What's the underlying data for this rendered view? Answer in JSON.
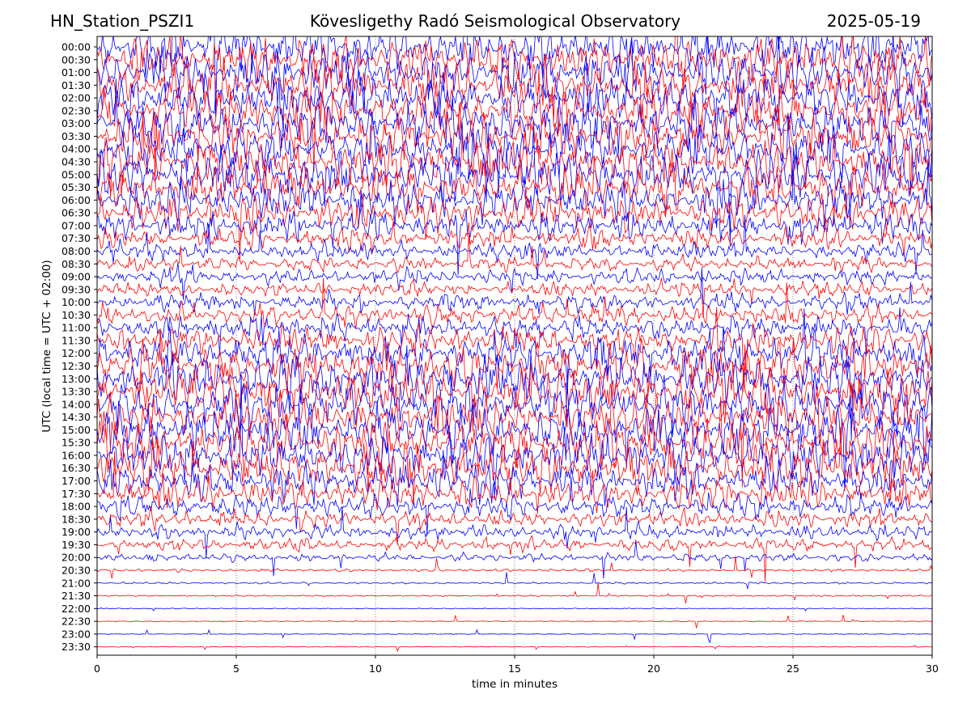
{
  "header": {
    "station": "HN_Station_PSZI1",
    "observatory": "Kövesligethy Radó Seismological Observatory",
    "date": "2025-05-19"
  },
  "chart_data": {
    "type": "line",
    "title": "Kövesligethy Radó Seismological Observatory",
    "xlabel": "time in minutes",
    "ylabel": "UTC (local time = UTC + 02:00)",
    "xlim": [
      0,
      30
    ],
    "x_ticks": [
      "0",
      "5",
      "10",
      "15",
      "20",
      "25",
      "30"
    ],
    "x_tick_values": [
      0,
      5,
      10,
      15,
      20,
      25,
      30
    ],
    "grid": "vertical dotted at x ticks",
    "row_labels": [
      "00:00",
      "00:30",
      "01:00",
      "01:30",
      "02:00",
      "02:30",
      "03:00",
      "03:30",
      "04:00",
      "04:30",
      "05:00",
      "05:30",
      "06:00",
      "06:30",
      "07:00",
      "07:30",
      "08:00",
      "08:30",
      "09:00",
      "09:30",
      "10:00",
      "10:30",
      "11:00",
      "11:30",
      "12:00",
      "12:30",
      "13:00",
      "13:30",
      "14:00",
      "14:30",
      "15:00",
      "15:30",
      "16:00",
      "16:30",
      "17:00",
      "17:30",
      "18:00",
      "18:30",
      "19:00",
      "19:30",
      "20:00",
      "20:30",
      "21:00",
      "21:30",
      "22:00",
      "22:30",
      "23:00",
      "23:30"
    ],
    "series_colors": [
      "#0000ff",
      "#ff0000"
    ],
    "row_activity": [
      1.0,
      1.0,
      1.0,
      1.0,
      1.0,
      1.0,
      1.0,
      1.0,
      1.0,
      1.0,
      1.0,
      0.95,
      0.9,
      0.85,
      0.75,
      0.65,
      0.6,
      0.55,
      0.55,
      0.55,
      0.6,
      0.65,
      0.7,
      0.8,
      0.9,
      1.0,
      1.0,
      1.0,
      1.0,
      1.0,
      1.0,
      1.0,
      1.0,
      1.0,
      0.9,
      0.8,
      0.7,
      0.6,
      0.55,
      0.5,
      0.4,
      0.22,
      0.16,
      0.13,
      0.06,
      0.04,
      0.02,
      0.015
    ]
  }
}
